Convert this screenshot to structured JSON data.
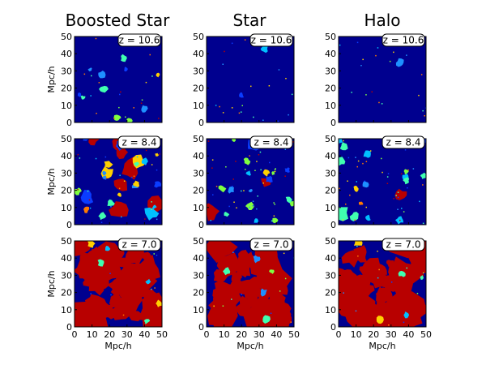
{
  "chart_data": {
    "type": "heatmap",
    "columns": [
      "Boosted Star",
      "Star",
      "Halo"
    ],
    "rows": [
      "z = 10.6",
      "z = 8.4",
      "z = 7.0"
    ],
    "xlabel": "Mpc/h",
    "ylabel": "Mpc/h",
    "xlim": [
      0,
      50
    ],
    "ylim": [
      0,
      50
    ],
    "xticks": [
      "0",
      "10",
      "20",
      "30",
      "40",
      "50"
    ],
    "yticks": [
      "0",
      "10",
      "20",
      "30",
      "40",
      "50"
    ],
    "colormap": "jet",
    "colors": {
      "background": "#00008f",
      "ionized": "#b80000",
      "palette": [
        "#0a3cff",
        "#1e90ff",
        "#00bfff",
        "#40ffb0",
        "#7fff40",
        "#ffd000",
        "#ff7a00",
        "#b80000"
      ]
    }
  }
}
